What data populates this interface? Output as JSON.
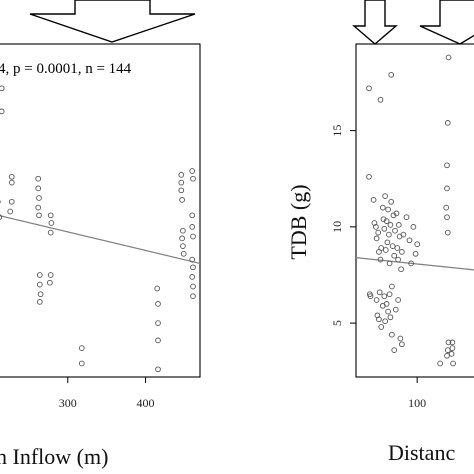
{
  "chart_data": [
    {
      "type": "scatter",
      "panel": "left",
      "xlabel_visible": "n Inflow (m)",
      "annotation": "4, p = 0.0001, n = 144",
      "xticks": [
        300,
        400
      ],
      "xlim": [
        200,
        470
      ],
      "ylim": [
        2.2,
        19.5
      ],
      "trend": {
        "x": [
          200,
          470
        ],
        "y": [
          10.7,
          8.1
        ]
      },
      "points": [
        {
          "x": 215,
          "y": 16.0
        },
        {
          "x": 215,
          "y": 17.2
        },
        {
          "x": 212,
          "y": 10.5
        },
        {
          "x": 208,
          "y": 9.0
        },
        {
          "x": 210,
          "y": 11.3
        },
        {
          "x": 228,
          "y": 12.6
        },
        {
          "x": 228,
          "y": 12.3
        },
        {
          "x": 228,
          "y": 11.3
        },
        {
          "x": 226,
          "y": 10.8
        },
        {
          "x": 262,
          "y": 12.5
        },
        {
          "x": 262,
          "y": 12.0
        },
        {
          "x": 263,
          "y": 11.5
        },
        {
          "x": 262,
          "y": 11.0
        },
        {
          "x": 263,
          "y": 10.6
        },
        {
          "x": 264,
          "y": 7.5
        },
        {
          "x": 264,
          "y": 7.0
        },
        {
          "x": 265,
          "y": 6.5
        },
        {
          "x": 264,
          "y": 6.1
        },
        {
          "x": 278,
          "y": 10.6
        },
        {
          "x": 279,
          "y": 10.2
        },
        {
          "x": 278,
          "y": 9.7
        },
        {
          "x": 278,
          "y": 7.5
        },
        {
          "x": 277,
          "y": 7.1
        },
        {
          "x": 318,
          "y": 2.9
        },
        {
          "x": 318,
          "y": 3.7
        },
        {
          "x": 415,
          "y": 6.8
        },
        {
          "x": 416,
          "y": 6.0
        },
        {
          "x": 416,
          "y": 5.0
        },
        {
          "x": 416,
          "y": 4.1
        },
        {
          "x": 416,
          "y": 2.6
        },
        {
          "x": 446,
          "y": 12.7
        },
        {
          "x": 446,
          "y": 12.3
        },
        {
          "x": 446,
          "y": 11.9
        },
        {
          "x": 447,
          "y": 11.4
        },
        {
          "x": 448,
          "y": 9.8
        },
        {
          "x": 447,
          "y": 9.4
        },
        {
          "x": 448,
          "y": 9.0
        },
        {
          "x": 449,
          "y": 8.6
        },
        {
          "x": 460,
          "y": 12.9
        },
        {
          "x": 461,
          "y": 12.5
        },
        {
          "x": 460,
          "y": 10.6
        },
        {
          "x": 460,
          "y": 10.0
        },
        {
          "x": 461,
          "y": 9.5
        },
        {
          "x": 460,
          "y": 8.3
        },
        {
          "x": 461,
          "y": 7.9
        },
        {
          "x": 460,
          "y": 7.4
        },
        {
          "x": 461,
          "y": 6.9
        },
        {
          "x": 461,
          "y": 6.4
        }
      ]
    },
    {
      "type": "scatter",
      "panel": "right",
      "ylabel": "TDB (g)",
      "xlabel_visible": "Distanc",
      "yticks": [
        5,
        10,
        15
      ],
      "xticks": [
        100
      ],
      "xlim": [
        20,
        190
      ],
      "ylim": [
        2.2,
        19.5
      ],
      "trend": {
        "x": [
          20,
          190
        ],
        "y": [
          8.4,
          7.7
        ]
      },
      "points": [
        {
          "x": 37,
          "y": 17.2
        },
        {
          "x": 52,
          "y": 16.6
        },
        {
          "x": 66,
          "y": 17.9
        },
        {
          "x": 37,
          "y": 12.6
        },
        {
          "x": 38,
          "y": 6.5
        },
        {
          "x": 39,
          "y": 6.4
        },
        {
          "x": 43,
          "y": 11.4
        },
        {
          "x": 44,
          "y": 10.2
        },
        {
          "x": 46,
          "y": 10.0
        },
        {
          "x": 47,
          "y": 9.4
        },
        {
          "x": 49,
          "y": 9.7
        },
        {
          "x": 50,
          "y": 8.7
        },
        {
          "x": 52,
          "y": 8.3
        },
        {
          "x": 53,
          "y": 8.9
        },
        {
          "x": 55,
          "y": 11.0
        },
        {
          "x": 56,
          "y": 10.4
        },
        {
          "x": 57,
          "y": 9.9
        },
        {
          "x": 58,
          "y": 11.6
        },
        {
          "x": 59,
          "y": 8.8
        },
        {
          "x": 60,
          "y": 10.3
        },
        {
          "x": 61,
          "y": 9.2
        },
        {
          "x": 62,
          "y": 10.9
        },
        {
          "x": 63,
          "y": 9.6
        },
        {
          "x": 64,
          "y": 8.1
        },
        {
          "x": 65,
          "y": 10.1
        },
        {
          "x": 66,
          "y": 11.3
        },
        {
          "x": 68,
          "y": 9.0
        },
        {
          "x": 69,
          "y": 10.6
        },
        {
          "x": 70,
          "y": 8.5
        },
        {
          "x": 71,
          "y": 9.8
        },
        {
          "x": 73,
          "y": 10.7
        },
        {
          "x": 74,
          "y": 8.9
        },
        {
          "x": 75,
          "y": 8.3
        },
        {
          "x": 76,
          "y": 10.1
        },
        {
          "x": 77,
          "y": 9.5
        },
        {
          "x": 79,
          "y": 7.8
        },
        {
          "x": 80,
          "y": 8.7
        },
        {
          "x": 82,
          "y": 9.6
        },
        {
          "x": 86,
          "y": 10.5
        },
        {
          "x": 90,
          "y": 9.3
        },
        {
          "x": 92,
          "y": 8.1
        },
        {
          "x": 95,
          "y": 10.0
        },
        {
          "x": 98,
          "y": 8.6
        },
        {
          "x": 100,
          "y": 9.1
        },
        {
          "x": 47,
          "y": 6.2
        },
        {
          "x": 48,
          "y": 5.4
        },
        {
          "x": 50,
          "y": 5.2
        },
        {
          "x": 51,
          "y": 6.6
        },
        {
          "x": 53,
          "y": 4.8
        },
        {
          "x": 55,
          "y": 5.9
        },
        {
          "x": 57,
          "y": 6.4
        },
        {
          "x": 58,
          "y": 5.1
        },
        {
          "x": 60,
          "y": 6.0
        },
        {
          "x": 62,
          "y": 5.6
        },
        {
          "x": 64,
          "y": 6.5
        },
        {
          "x": 65,
          "y": 5.3
        },
        {
          "x": 67,
          "y": 4.4
        },
        {
          "x": 70,
          "y": 3.6
        },
        {
          "x": 78,
          "y": 4.2
        },
        {
          "x": 80,
          "y": 3.9
        },
        {
          "x": 67,
          "y": 6.9
        },
        {
          "x": 72,
          "y": 5.7
        },
        {
          "x": 75,
          "y": 6.2
        },
        {
          "x": 141,
          "y": 18.8
        },
        {
          "x": 140,
          "y": 15.4
        },
        {
          "x": 139,
          "y": 13.2
        },
        {
          "x": 139,
          "y": 12.0
        },
        {
          "x": 138,
          "y": 11.0
        },
        {
          "x": 139,
          "y": 10.5
        },
        {
          "x": 140,
          "y": 9.7
        },
        {
          "x": 130,
          "y": 2.9
        },
        {
          "x": 139,
          "y": 3.3
        },
        {
          "x": 140,
          "y": 3.6
        },
        {
          "x": 141,
          "y": 4.0
        },
        {
          "x": 145,
          "y": 3.4
        },
        {
          "x": 146,
          "y": 4.0
        },
        {
          "x": 146,
          "y": 3.7
        },
        {
          "x": 147,
          "y": 2.9
        }
      ]
    }
  ]
}
